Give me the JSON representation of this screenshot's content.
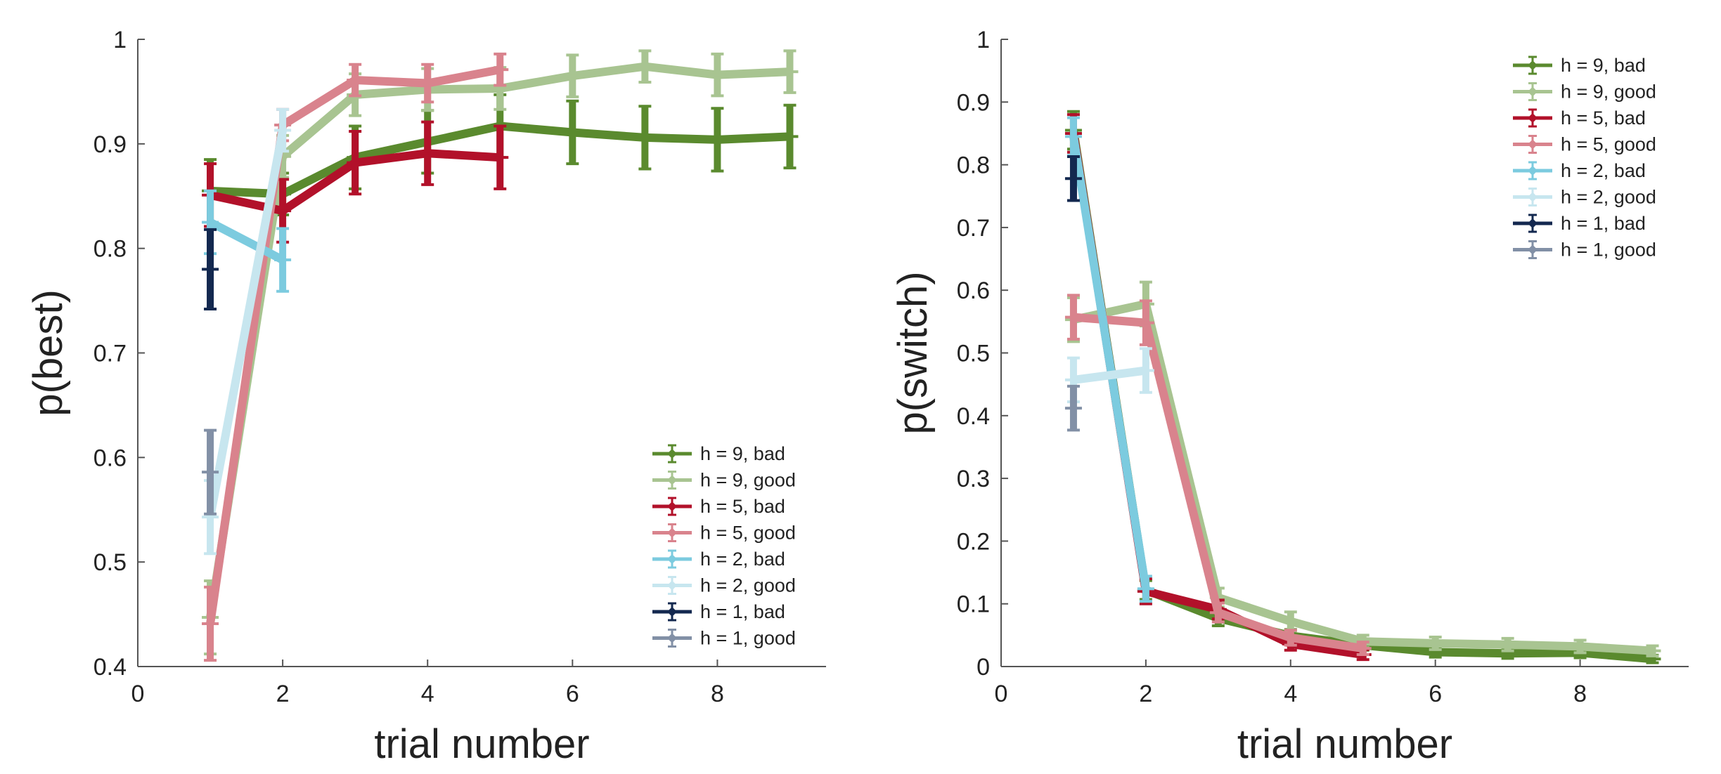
{
  "chart_data": [
    {
      "type": "line",
      "xlabel": "trial number",
      "ylabel": "p(best)",
      "xlim": [
        0,
        9.5
      ],
      "ylim": [
        0.4,
        1.0
      ],
      "xticks": [
        0,
        2,
        4,
        6,
        8
      ],
      "yticks": [
        0.4,
        0.5,
        0.6,
        0.7,
        0.8,
        0.9,
        1
      ],
      "xtick_labels": [
        "0",
        "2",
        "4",
        "6",
        "8"
      ],
      "ytick_labels": [
        "0.4",
        "0.5",
        "0.6",
        "0.7",
        "0.8",
        "0.9",
        "1"
      ],
      "legend_position": "bottom-right",
      "grid": false,
      "series": [
        {
          "name": "h = 9, bad",
          "color": "#5a8a2e",
          "x": [
            1,
            2,
            3,
            4,
            5,
            6,
            7,
            8,
            9
          ],
          "y": [
            0.855,
            0.852,
            0.887,
            0.902,
            0.917,
            0.911,
            0.906,
            0.904,
            0.907
          ],
          "err": [
            0.03,
            0.02,
            0.03,
            0.03,
            0.03,
            0.03,
            0.03,
            0.03,
            0.03
          ]
        },
        {
          "name": "h = 9, good",
          "color": "#a8c491",
          "x": [
            1,
            2,
            3,
            4,
            5,
            6,
            7,
            8,
            9
          ],
          "y": [
            0.447,
            0.888,
            0.947,
            0.952,
            0.953,
            0.965,
            0.974,
            0.966,
            0.969
          ],
          "err": [
            0.035,
            0.02,
            0.02,
            0.02,
            0.02,
            0.02,
            0.015,
            0.02,
            0.02
          ]
        },
        {
          "name": "h = 5, bad",
          "color": "#b2112a",
          "x": [
            1,
            2,
            3,
            4,
            5
          ],
          "y": [
            0.851,
            0.836,
            0.882,
            0.891,
            0.887
          ],
          "err": [
            0.03,
            0.03,
            0.03,
            0.03,
            0.03
          ]
        },
        {
          "name": "h = 5, good",
          "color": "#d9838d",
          "x": [
            1,
            2,
            3,
            4,
            5
          ],
          "y": [
            0.441,
            0.918,
            0.961,
            0.958,
            0.971
          ],
          "err": [
            0.035,
            0.015,
            0.015,
            0.018,
            0.015
          ]
        },
        {
          "name": "h = 2, bad",
          "color": "#7ccbdf",
          "x": [
            1,
            2
          ],
          "y": [
            0.825,
            0.789
          ],
          "err": [
            0.03,
            0.03
          ]
        },
        {
          "name": "h = 2, good",
          "color": "#c7e6ef",
          "x": [
            1,
            2
          ],
          "y": [
            0.543,
            0.913
          ],
          "err": [
            0.035,
            0.02
          ]
        },
        {
          "name": "h = 1, bad",
          "color": "#13284f",
          "x": [
            1
          ],
          "y": [
            0.78
          ],
          "err": [
            0.038
          ]
        },
        {
          "name": "h = 1, good",
          "color": "#8290a6",
          "x": [
            1
          ],
          "y": [
            0.586
          ],
          "err": [
            0.04
          ]
        }
      ]
    },
    {
      "type": "line",
      "xlabel": "trial number",
      "ylabel": "p(switch)",
      "xlim": [
        0,
        9.5
      ],
      "ylim": [
        0,
        1.0
      ],
      "xticks": [
        0,
        2,
        4,
        6,
        8
      ],
      "yticks": [
        0,
        0.1,
        0.2,
        0.3,
        0.4,
        0.5,
        0.6,
        0.7,
        0.8,
        0.9,
        1
      ],
      "xtick_labels": [
        "0",
        "2",
        "4",
        "6",
        "8"
      ],
      "ytick_labels": [
        "0",
        "0.1",
        "0.2",
        "0.3",
        "0.4",
        "0.5",
        "0.6",
        "0.7",
        "0.8",
        "0.9",
        "1"
      ],
      "legend_position": "top-right",
      "grid": false,
      "series": [
        {
          "name": "h = 9, bad",
          "color": "#5a8a2e",
          "x": [
            1,
            2,
            3,
            4,
            5,
            6,
            7,
            8,
            9
          ],
          "y": [
            0.855,
            0.122,
            0.077,
            0.049,
            0.034,
            0.023,
            0.021,
            0.022,
            0.012
          ],
          "err": [
            0.03,
            0.015,
            0.012,
            0.01,
            0.008,
            0.008,
            0.008,
            0.008,
            0.006
          ]
        },
        {
          "name": "h = 9, good",
          "color": "#a8c491",
          "x": [
            1,
            2,
            3,
            4,
            5,
            6,
            7,
            8,
            9
          ],
          "y": [
            0.553,
            0.578,
            0.11,
            0.072,
            0.04,
            0.037,
            0.035,
            0.032,
            0.025
          ],
          "err": [
            0.035,
            0.035,
            0.015,
            0.015,
            0.01,
            0.01,
            0.01,
            0.01,
            0.008
          ]
        },
        {
          "name": "h = 5, bad",
          "color": "#b2112a",
          "x": [
            1,
            2,
            3,
            4,
            5
          ],
          "y": [
            0.85,
            0.12,
            0.091,
            0.036,
            0.019
          ],
          "err": [
            0.03,
            0.02,
            0.015,
            0.01,
            0.008
          ]
        },
        {
          "name": "h = 5, good",
          "color": "#d9838d",
          "x": [
            1,
            2,
            3,
            4,
            5
          ],
          "y": [
            0.557,
            0.548,
            0.086,
            0.046,
            0.029
          ],
          "err": [
            0.035,
            0.035,
            0.015,
            0.012,
            0.01
          ]
        },
        {
          "name": "h = 2, bad",
          "color": "#7ccbdf",
          "x": [
            1,
            2
          ],
          "y": [
            0.845,
            0.124
          ],
          "err": [
            0.03,
            0.02
          ]
        },
        {
          "name": "h = 2, good",
          "color": "#c7e6ef",
          "x": [
            1,
            2
          ],
          "y": [
            0.457,
            0.472
          ],
          "err": [
            0.035,
            0.035
          ]
        },
        {
          "name": "h = 1, bad",
          "color": "#13284f",
          "x": [
            1
          ],
          "y": [
            0.778
          ],
          "err": [
            0.035
          ]
        },
        {
          "name": "h = 1, good",
          "color": "#8290a6",
          "x": [
            1
          ],
          "y": [
            0.412
          ],
          "err": [
            0.035
          ]
        }
      ]
    }
  ]
}
